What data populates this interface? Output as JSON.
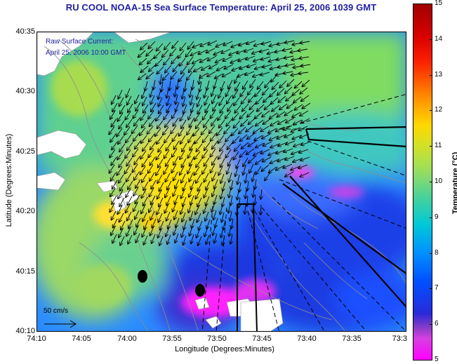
{
  "title": "RU COOL  NOAA-15  Sea Surface Temperature:  April 25, 2006 1039 GMT",
  "legend": {
    "line1": "Raw Surface Current:",
    "line2": "April 25, 2006 10:00 GMT",
    "scale_label": "50 cm/s"
  },
  "axes": {
    "ylabel": "Latitude (Degrees:Minutes)",
    "xlabel": "Longitude (Degrees:Minutes)",
    "lat_ticks": [
      "40:35",
      "40:30",
      "40:25",
      "40:20",
      "40:15",
      "40:10"
    ],
    "lon_ticks": [
      "74:10",
      "74:05",
      "74:00",
      "73:55",
      "73:50",
      "73:45",
      "73:40",
      "73:35",
      "73:3"
    ]
  },
  "colorbar": {
    "title": "Temperature (°C)",
    "ticks": [
      "15",
      "14",
      "13",
      "12",
      "11",
      "10",
      "9",
      "8",
      "7",
      "6",
      "5"
    ]
  },
  "colors": {
    "title_text": "#1f1fa0",
    "land": "#ffffff"
  },
  "icons": [
    "current-vector-field-icon",
    "station-marker-icon",
    "shipping-lane-icon"
  ]
}
